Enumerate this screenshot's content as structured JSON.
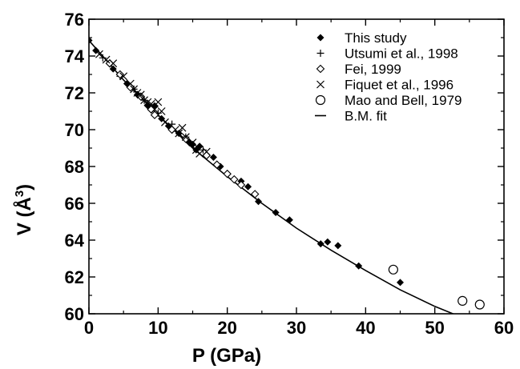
{
  "chart_data": {
    "type": "scatter",
    "title": "",
    "xlabel": "P (GPa)",
    "ylabel_main": "V (Å",
    "ylabel_sup": "3",
    "ylabel_close": ")",
    "xlim": [
      0,
      60
    ],
    "ylim": [
      60,
      76
    ],
    "xticks": [
      0,
      10,
      20,
      30,
      40,
      50,
      60
    ],
    "yticks": [
      60,
      62,
      64,
      66,
      68,
      70,
      72,
      74,
      76
    ],
    "grid": false,
    "legend_placement": "top-right",
    "series": [
      {
        "name": "This study",
        "marker": "filled-diamond",
        "points": [
          [
            0,
            74.85
          ],
          [
            1,
            74.3
          ],
          [
            3.5,
            73.3
          ],
          [
            5.5,
            72.5
          ],
          [
            7,
            71.9
          ],
          [
            8.5,
            71.3
          ],
          [
            9.5,
            71.3
          ],
          [
            10.5,
            70.6
          ],
          [
            11.5,
            70.2
          ],
          [
            13,
            69.8
          ],
          [
            14.5,
            69.3
          ],
          [
            15,
            69.2
          ],
          [
            15.5,
            68.9
          ],
          [
            16,
            69.1
          ],
          [
            18,
            68.5
          ],
          [
            19,
            68.0
          ],
          [
            20,
            67.6
          ],
          [
            22,
            67.2
          ],
          [
            23,
            66.9
          ],
          [
            24.5,
            66.1
          ],
          [
            27,
            65.5
          ],
          [
            29,
            65.1
          ],
          [
            33.5,
            63.8
          ],
          [
            34.5,
            63.9
          ],
          [
            36,
            63.7
          ],
          [
            39,
            62.6
          ],
          [
            45,
            61.7
          ]
        ]
      },
      {
        "name": "Utsumi et al., 1998",
        "marker": "plus",
        "points": [
          [
            2,
            73.9
          ],
          [
            4.5,
            72.9
          ],
          [
            6.5,
            72.2
          ],
          [
            8,
            71.6
          ],
          [
            10,
            70.9
          ],
          [
            12,
            70.3
          ],
          [
            14,
            69.6
          ],
          [
            16.5,
            68.9
          ]
        ]
      },
      {
        "name": "Fei, 1999",
        "marker": "open-diamond",
        "points": [
          [
            3,
            73.6
          ],
          [
            4.5,
            73.0
          ],
          [
            6,
            72.3
          ],
          [
            7.5,
            71.8
          ],
          [
            9,
            71.1
          ],
          [
            9.5,
            70.8
          ],
          [
            12,
            70.0
          ],
          [
            14,
            69.5
          ],
          [
            17,
            68.6
          ],
          [
            18.5,
            68.1
          ],
          [
            20,
            67.6
          ],
          [
            21,
            67.3
          ],
          [
            22,
            67.0
          ],
          [
            24,
            66.5
          ]
        ]
      },
      {
        "name": "Fiquet et al., 1996",
        "marker": "cross",
        "points": [
          [
            1.5,
            74.1
          ],
          [
            2.5,
            73.8
          ],
          [
            3.5,
            73.6
          ],
          [
            5,
            72.9
          ],
          [
            6,
            72.5
          ],
          [
            6.5,
            72.2
          ],
          [
            7,
            72.0
          ],
          [
            7.5,
            71.9
          ],
          [
            8,
            71.6
          ],
          [
            8.5,
            71.5
          ],
          [
            9,
            71.4
          ],
          [
            9.5,
            71.1
          ],
          [
            10,
            71.5
          ],
          [
            10.5,
            71.0
          ],
          [
            11,
            70.4
          ],
          [
            12.5,
            70.0
          ],
          [
            13,
            69.8
          ],
          [
            13.5,
            70.1
          ],
          [
            14,
            69.6
          ],
          [
            15,
            69.3
          ],
          [
            15.5,
            68.9
          ],
          [
            16,
            68.7
          ],
          [
            17,
            68.8
          ]
        ]
      },
      {
        "name": "Mao and Bell, 1979",
        "marker": "open-circle",
        "points": [
          [
            44,
            62.4
          ],
          [
            54,
            60.7
          ],
          [
            56.5,
            60.5
          ]
        ]
      },
      {
        "name": "B.M. fit",
        "marker": "line",
        "points": [
          [
            0,
            74.85
          ],
          [
            5,
            72.7
          ],
          [
            10,
            70.8
          ],
          [
            15,
            69.0
          ],
          [
            20,
            67.45
          ],
          [
            25,
            66.0
          ],
          [
            30,
            64.65
          ],
          [
            35,
            63.45
          ],
          [
            40,
            62.35
          ],
          [
            45,
            61.3
          ],
          [
            50,
            60.4
          ],
          [
            53.6,
            59.85
          ]
        ]
      }
    ]
  }
}
